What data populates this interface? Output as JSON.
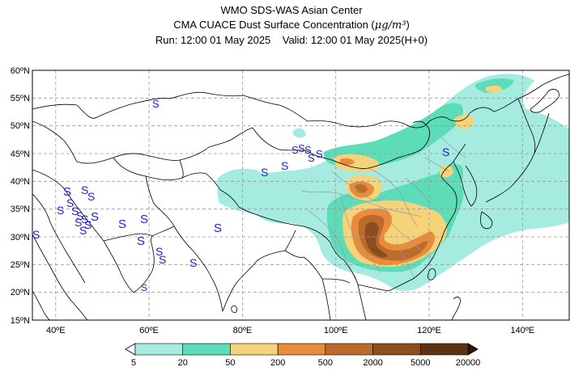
{
  "header": {
    "line1": "WMO SDS-WAS Asian Center",
    "line2_prefix": "CMA CUACE Dust Surface Concentration (",
    "line2_unit": "μg/m³",
    "line2_suffix": ")",
    "line3": "Run: 12:00 01 May 2025    Valid: 12:00 01 May 2025(H+0)"
  },
  "map": {
    "lat_labels": [
      "60ºN",
      "55ºN",
      "50ºN",
      "45ºN",
      "40ºN",
      "35ºN",
      "30ºN",
      "25ºN",
      "20ºN",
      "15ºN"
    ],
    "lon_labels": [
      "40ºE",
      "60ºE",
      "80ºE",
      "100ºE",
      "120ºE",
      "140ºE"
    ],
    "lat_range": [
      15,
      60
    ],
    "lon_range": [
      35,
      150
    ],
    "station_marker": "S",
    "colors": {
      "land_border": "#000000",
      "province_border": "#9a9a9a",
      "grid": "#9a9a9a",
      "station": "#1a1aee"
    }
  },
  "legend": {
    "levels": [
      "5",
      "20",
      "50",
      "200",
      "500",
      "2000",
      "5000",
      "20000"
    ],
    "colors": [
      "#a5ebe0",
      "#5cdcb7",
      "#f4d37b",
      "#e88b3b",
      "#bb6c2c",
      "#8c4e1c",
      "#5c3414"
    ]
  }
}
